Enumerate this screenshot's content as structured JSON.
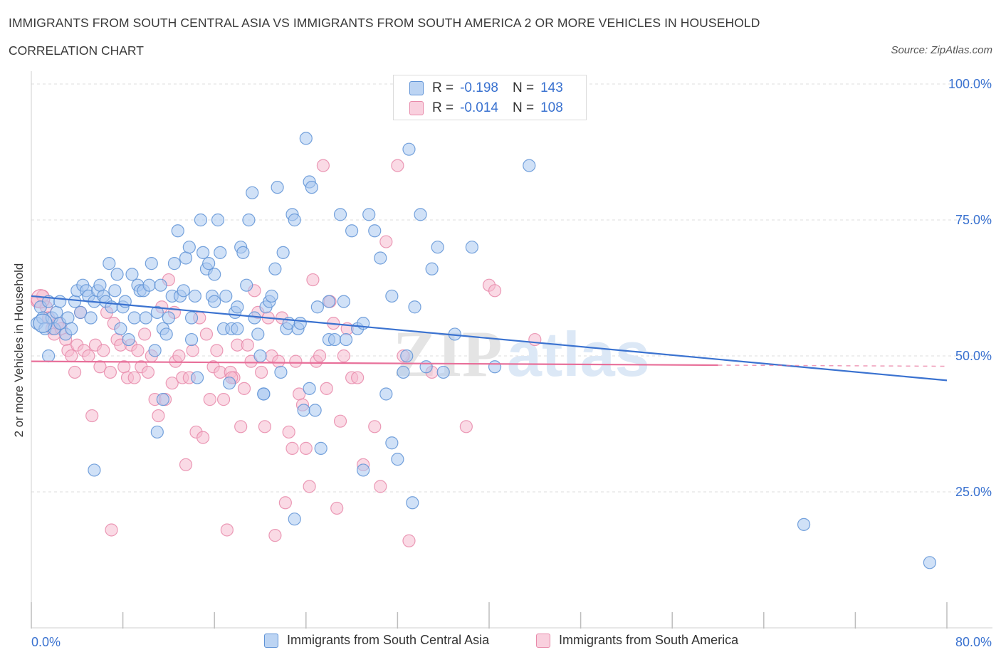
{
  "header": {
    "title": "IMMIGRANTS FROM SOUTH CENTRAL ASIA VS IMMIGRANTS FROM SOUTH AMERICA 2 OR MORE VEHICLES IN HOUSEHOLD",
    "subtitle": "CORRELATION CHART",
    "source": "Source: ZipAtlas.com"
  },
  "stats_legend": {
    "rows": [
      {
        "r_label": "R =",
        "r_value": "-0.198",
        "n_label": "N =",
        "n_value": "143"
      },
      {
        "r_label": "R =",
        "r_value": "-0.014",
        "n_label": "N =",
        "n_value": "108"
      }
    ]
  },
  "watermark": {
    "zip": "ZIP",
    "atlas": "atlas"
  },
  "colors": {
    "blue_fill": "#a9c8f0",
    "blue_stroke": "#5f93d6",
    "blue_line": "#3a72d0",
    "pink_fill": "#f6bcd0",
    "pink_stroke": "#e88aaa",
    "pink_line": "#e8709a",
    "grid": "#dedede",
    "axis_text": "#3a72d0"
  },
  "chart_data": {
    "type": "scatter",
    "xlabel": "",
    "ylabel": "2 or more Vehicles in Household",
    "xlim": [
      0,
      80
    ],
    "ylim": [
      0,
      100
    ],
    "x_tick_labels": [
      "0.0%",
      "80.0%"
    ],
    "y_tick_labels": [
      "25.0%",
      "50.0%",
      "75.0%",
      "100.0%"
    ],
    "y_ticks": [
      25,
      50,
      75,
      100
    ],
    "legend_position": "bottom",
    "series": [
      {
        "name": "Immigrants from South Central Asia",
        "color": "#a9c8f0",
        "trend": {
          "x": [
            0,
            80
          ],
          "y": [
            61.0,
            45.5
          ]
        },
        "points": [
          [
            0.5,
            56
          ],
          [
            0.8,
            59
          ],
          [
            1.0,
            57
          ],
          [
            1.2,
            55
          ],
          [
            1.5,
            60
          ],
          [
            1.8,
            57
          ],
          [
            2.0,
            55
          ],
          [
            2.2,
            58
          ],
          [
            1.5,
            50
          ],
          [
            2.5,
            56
          ],
          [
            3.0,
            54
          ],
          [
            3.2,
            57
          ],
          [
            2.5,
            60
          ],
          [
            3.5,
            55
          ],
          [
            3.8,
            60
          ],
          [
            4.0,
            62
          ],
          [
            4.3,
            58
          ],
          [
            4.5,
            63
          ],
          [
            4.8,
            62
          ],
          [
            5.0,
            61
          ],
          [
            5.2,
            57
          ],
          [
            5.5,
            60
          ],
          [
            5.8,
            62
          ],
          [
            6.0,
            63
          ],
          [
            6.3,
            61
          ],
          [
            6.5,
            60
          ],
          [
            6.8,
            67
          ],
          [
            7.0,
            59
          ],
          [
            7.3,
            62
          ],
          [
            7.5,
            65
          ],
          [
            7.8,
            55
          ],
          [
            8.0,
            59
          ],
          [
            8.2,
            60
          ],
          [
            8.5,
            53
          ],
          [
            8.8,
            65
          ],
          [
            9.0,
            57
          ],
          [
            9.3,
            63
          ],
          [
            9.5,
            62
          ],
          [
            9.8,
            62
          ],
          [
            10.0,
            57
          ],
          [
            10.3,
            63
          ],
          [
            10.5,
            67
          ],
          [
            10.8,
            51
          ],
          [
            11.0,
            58
          ],
          [
            11.3,
            63
          ],
          [
            11.5,
            55
          ],
          [
            11.8,
            54
          ],
          [
            12.0,
            57
          ],
          [
            12.3,
            61
          ],
          [
            12.5,
            67
          ],
          [
            12.8,
            73
          ],
          [
            13.0,
            61
          ],
          [
            13.3,
            62
          ],
          [
            13.5,
            68
          ],
          [
            13.8,
            70
          ],
          [
            14.0,
            57
          ],
          [
            14.3,
            61
          ],
          [
            14.5,
            46
          ],
          [
            14.8,
            75
          ],
          [
            15.0,
            69
          ],
          [
            15.3,
            66
          ],
          [
            15.5,
            67
          ],
          [
            15.8,
            61
          ],
          [
            16.0,
            60
          ],
          [
            16.3,
            75
          ],
          [
            16.5,
            69
          ],
          [
            16.8,
            55
          ],
          [
            17.0,
            61
          ],
          [
            17.3,
            45
          ],
          [
            17.5,
            55
          ],
          [
            17.8,
            58
          ],
          [
            18.0,
            59
          ],
          [
            18.3,
            70
          ],
          [
            18.5,
            69
          ],
          [
            18.8,
            63
          ],
          [
            19.0,
            75
          ],
          [
            19.3,
            80
          ],
          [
            19.5,
            57
          ],
          [
            19.8,
            54
          ],
          [
            20.0,
            50
          ],
          [
            20.3,
            43
          ],
          [
            20.5,
            59
          ],
          [
            20.8,
            60
          ],
          [
            21.0,
            61
          ],
          [
            21.3,
            66
          ],
          [
            21.5,
            81
          ],
          [
            21.8,
            47
          ],
          [
            22.0,
            69
          ],
          [
            22.3,
            55
          ],
          [
            22.5,
            56
          ],
          [
            22.8,
            76
          ],
          [
            23.0,
            75
          ],
          [
            23.3,
            55
          ],
          [
            23.5,
            56
          ],
          [
            23.8,
            40
          ],
          [
            24.0,
            90
          ],
          [
            24.3,
            82
          ],
          [
            24.5,
            81
          ],
          [
            24.8,
            40
          ],
          [
            25.0,
            59
          ],
          [
            25.3,
            33
          ],
          [
            26.0,
            53
          ],
          [
            26.5,
            53
          ],
          [
            27.0,
            76
          ],
          [
            27.3,
            60
          ],
          [
            27.5,
            53
          ],
          [
            28.0,
            73
          ],
          [
            28.5,
            55
          ],
          [
            29.0,
            29
          ],
          [
            29.5,
            76
          ],
          [
            30.0,
            73
          ],
          [
            30.5,
            68
          ],
          [
            31.0,
            43
          ],
          [
            31.5,
            34
          ],
          [
            32.0,
            31
          ],
          [
            32.5,
            47
          ],
          [
            32.8,
            50
          ],
          [
            33.0,
            88
          ],
          [
            33.3,
            23
          ],
          [
            34.0,
            76
          ],
          [
            34.5,
            48
          ],
          [
            35.0,
            66
          ],
          [
            35.5,
            70
          ],
          [
            37.0,
            54
          ],
          [
            38.5,
            70
          ],
          [
            43.5,
            85
          ],
          [
            5.5,
            29
          ],
          [
            11.0,
            36
          ],
          [
            11.5,
            42
          ],
          [
            14.0,
            53
          ],
          [
            16.0,
            65
          ],
          [
            18.0,
            55
          ],
          [
            20.3,
            43
          ],
          [
            23.0,
            20
          ],
          [
            24.3,
            44
          ],
          [
            26.0,
            60
          ],
          [
            29.0,
            56
          ],
          [
            31.5,
            61
          ],
          [
            33.5,
            59
          ],
          [
            36.0,
            47
          ],
          [
            40.5,
            48
          ],
          [
            67.5,
            19
          ],
          [
            78.5,
            12
          ]
        ]
      },
      {
        "name": "Immigrants from South America",
        "color": "#f6bcd0",
        "trend": {
          "x": [
            0,
            60
          ],
          "y": [
            49.0,
            48.3
          ]
        },
        "trend_dashed": {
          "x": [
            60,
            80
          ],
          "y": [
            48.3,
            48.1
          ]
        },
        "points": [
          [
            0.5,
            60
          ],
          [
            1.0,
            61
          ],
          [
            1.3,
            59
          ],
          [
            1.5,
            57
          ],
          [
            1.8,
            55
          ],
          [
            2.0,
            54
          ],
          [
            2.3,
            56
          ],
          [
            2.6,
            55
          ],
          [
            3.0,
            53
          ],
          [
            3.2,
            51
          ],
          [
            3.5,
            50
          ],
          [
            3.8,
            47
          ],
          [
            4.0,
            52
          ],
          [
            4.3,
            58
          ],
          [
            4.6,
            51
          ],
          [
            5.0,
            50
          ],
          [
            5.3,
            39
          ],
          [
            5.6,
            52
          ],
          [
            6.0,
            48
          ],
          [
            6.3,
            51
          ],
          [
            6.6,
            58
          ],
          [
            6.9,
            47
          ],
          [
            7.2,
            56
          ],
          [
            7.5,
            53
          ],
          [
            7.8,
            52
          ],
          [
            8.1,
            48
          ],
          [
            8.4,
            46
          ],
          [
            8.7,
            52
          ],
          [
            9.0,
            46
          ],
          [
            9.3,
            51
          ],
          [
            9.6,
            48
          ],
          [
            9.9,
            54
          ],
          [
            10.2,
            47
          ],
          [
            10.5,
            50
          ],
          [
            10.8,
            42
          ],
          [
            11.1,
            39
          ],
          [
            11.4,
            59
          ],
          [
            11.7,
            42
          ],
          [
            12.0,
            64
          ],
          [
            12.3,
            45
          ],
          [
            12.6,
            49
          ],
          [
            12.9,
            50
          ],
          [
            13.2,
            46
          ],
          [
            13.5,
            30
          ],
          [
            13.8,
            46
          ],
          [
            14.1,
            51
          ],
          [
            14.4,
            36
          ],
          [
            14.7,
            57
          ],
          [
            15.0,
            35
          ],
          [
            15.3,
            54
          ],
          [
            15.6,
            42
          ],
          [
            15.9,
            48
          ],
          [
            16.2,
            51
          ],
          [
            16.5,
            47
          ],
          [
            16.8,
            42
          ],
          [
            17.1,
            18
          ],
          [
            17.4,
            47
          ],
          [
            17.7,
            46
          ],
          [
            18.0,
            52
          ],
          [
            18.3,
            37
          ],
          [
            18.6,
            44
          ],
          [
            18.9,
            52
          ],
          [
            19.2,
            49
          ],
          [
            19.5,
            62
          ],
          [
            19.8,
            58
          ],
          [
            20.1,
            47
          ],
          [
            20.4,
            37
          ],
          [
            20.7,
            57
          ],
          [
            21.0,
            50
          ],
          [
            21.3,
            17
          ],
          [
            21.6,
            49
          ],
          [
            21.9,
            57
          ],
          [
            22.2,
            23
          ],
          [
            22.5,
            36
          ],
          [
            22.8,
            33
          ],
          [
            23.1,
            49
          ],
          [
            23.4,
            43
          ],
          [
            23.7,
            41
          ],
          [
            24.0,
            33
          ],
          [
            24.3,
            26
          ],
          [
            24.6,
            64
          ],
          [
            24.9,
            49
          ],
          [
            25.2,
            50
          ],
          [
            25.5,
            85
          ],
          [
            25.8,
            44
          ],
          [
            26.1,
            60
          ],
          [
            26.4,
            56
          ],
          [
            26.7,
            22
          ],
          [
            27.0,
            38
          ],
          [
            27.3,
            50
          ],
          [
            27.6,
            55
          ],
          [
            28.0,
            46
          ],
          [
            28.5,
            46
          ],
          [
            29.0,
            30
          ],
          [
            30.0,
            37
          ],
          [
            30.5,
            26
          ],
          [
            31.0,
            71
          ],
          [
            32.0,
            85
          ],
          [
            32.5,
            50
          ],
          [
            33.0,
            16
          ],
          [
            35.0,
            47
          ],
          [
            38.0,
            37
          ],
          [
            40.0,
            63
          ],
          [
            40.5,
            62
          ],
          [
            44.0,
            53
          ],
          [
            7.0,
            18
          ],
          [
            12.5,
            58
          ],
          [
            17.5,
            46
          ]
        ]
      }
    ]
  }
}
